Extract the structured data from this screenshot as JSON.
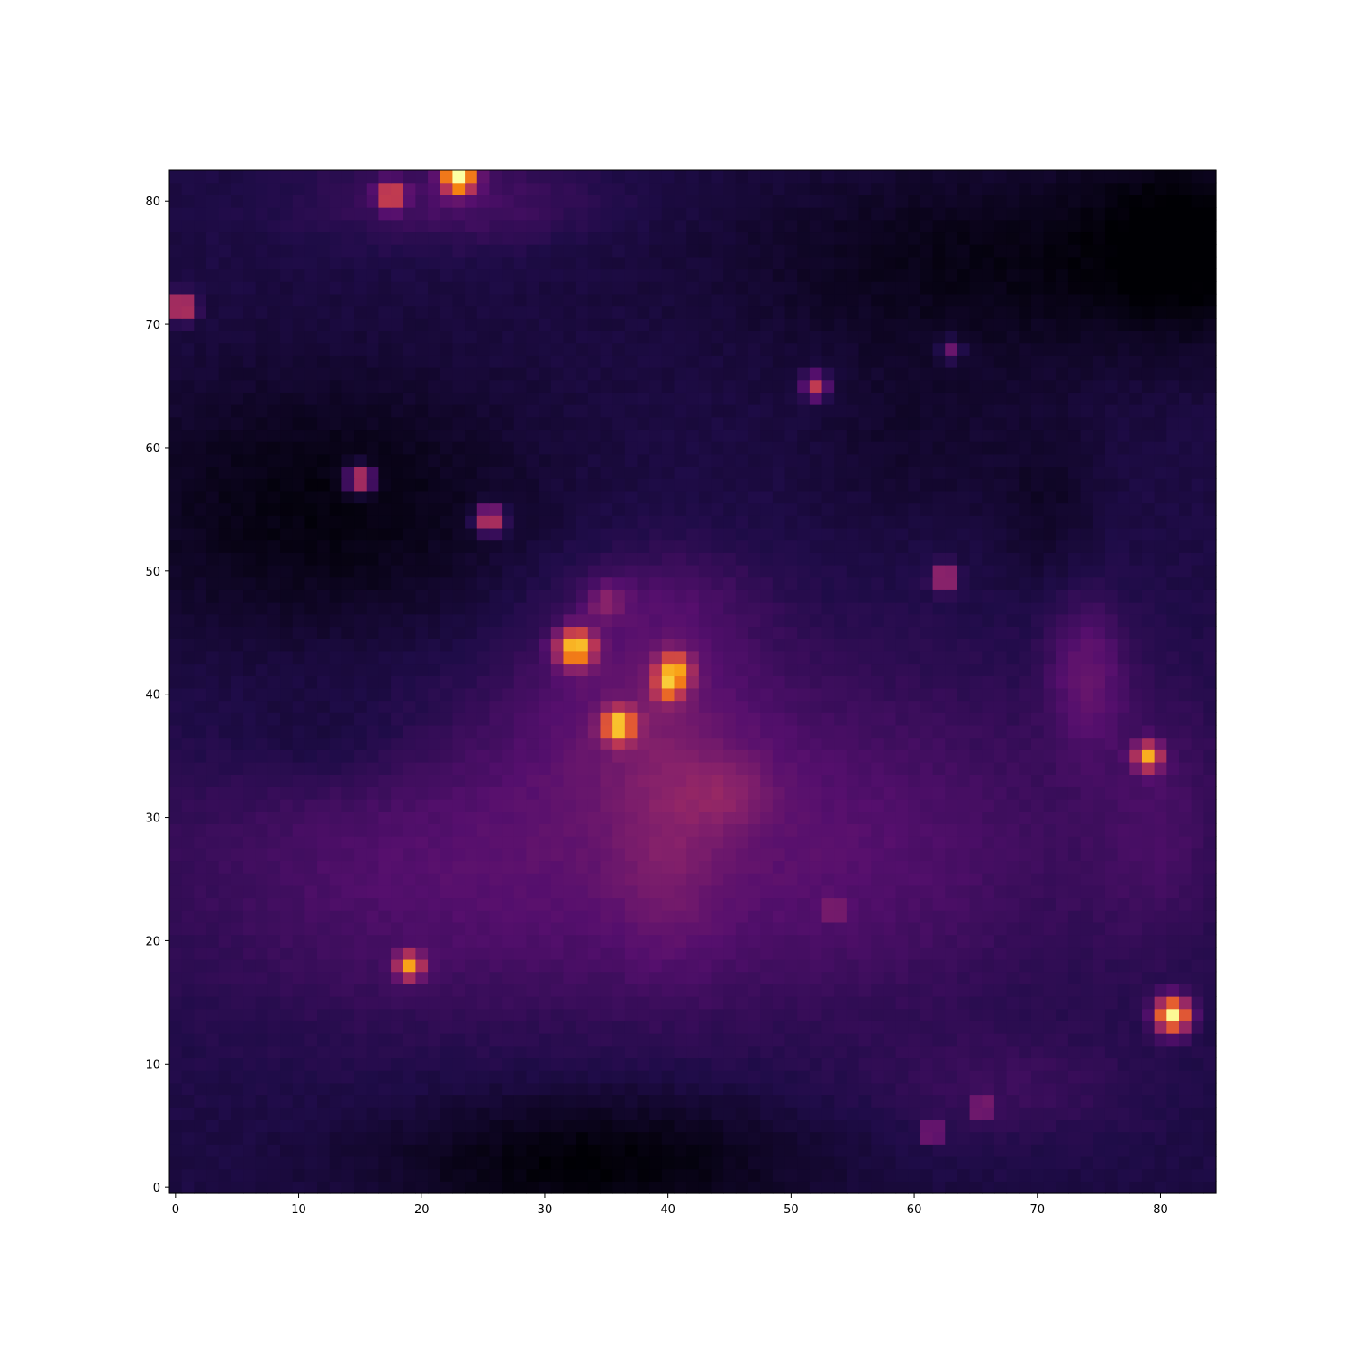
{
  "chart_data": {
    "type": "heatmap",
    "title": "",
    "xlabel": "",
    "ylabel": "",
    "colormap": "inferno",
    "origin": "lower",
    "grid": false,
    "legend": "none",
    "colorbar": false,
    "shape": [
      83,
      85
    ],
    "xlim": [
      -0.5,
      84.5
    ],
    "ylim": [
      -0.5,
      82.5
    ],
    "xticks": [
      0,
      10,
      20,
      30,
      40,
      50,
      60,
      70,
      80
    ],
    "xtick_labels": [
      "0",
      "10",
      "20",
      "30",
      "40",
      "50",
      "60",
      "70",
      "80"
    ],
    "yticks": [
      0,
      10,
      20,
      30,
      40,
      50,
      60,
      70,
      80
    ],
    "ytick_labels": [
      "0",
      "10",
      "20",
      "30",
      "40",
      "50",
      "60",
      "70",
      "80"
    ],
    "value_range": [
      0,
      1
    ],
    "background_level": 0.12,
    "regions": [
      {
        "x": 22,
        "y": 26,
        "sx": 18,
        "sy": 9,
        "amp": 0.12
      },
      {
        "x": 55,
        "y": 28,
        "sx": 16,
        "sy": 10,
        "amp": 0.11
      },
      {
        "x": 38,
        "y": 40,
        "sx": 7,
        "sy": 7,
        "amp": 0.12
      },
      {
        "x": 40,
        "y": 28,
        "sx": 3,
        "sy": 7,
        "amp": 0.08
      },
      {
        "x": 74,
        "y": 42,
        "sx": 2.2,
        "sy": 4.5,
        "amp": 0.14
      },
      {
        "x": 80,
        "y": 30,
        "sx": 4,
        "sy": 8,
        "amp": 0.07
      },
      {
        "x": 68,
        "y": 8,
        "sx": 8,
        "sy": 3,
        "amp": 0.06
      },
      {
        "x": 23,
        "y": 80,
        "sx": 8,
        "sy": 2.5,
        "amp": 0.1
      },
      {
        "x": 45,
        "y": 32,
        "sx": 2.5,
        "sy": 2,
        "amp": 0.1
      },
      {
        "x": 40,
        "y": 48,
        "sx": 5,
        "sy": 2.5,
        "amp": 0.05
      },
      {
        "x": 12,
        "y": 36,
        "sx": 6,
        "sy": 3,
        "amp": -0.05
      },
      {
        "x": 34,
        "y": 2,
        "sx": 12,
        "sy": 4,
        "amp": -0.12
      },
      {
        "x": 12,
        "y": 55,
        "sx": 12,
        "sy": 8,
        "amp": -0.1
      },
      {
        "x": 68,
        "y": 75,
        "sx": 16,
        "sy": 6,
        "amp": -0.09
      },
      {
        "x": 82,
        "y": 77,
        "sx": 5,
        "sy": 5,
        "amp": -0.1
      },
      {
        "x": 60,
        "y": 60,
        "sx": 6,
        "sy": 5,
        "amp": -0.04
      },
      {
        "x": 71,
        "y": 55,
        "sx": 3,
        "sy": 5,
        "amp": -0.05
      }
    ],
    "sources": [
      {
        "x": 23,
        "y": 82,
        "amp": 0.95,
        "s": 0.9
      },
      {
        "x": 17.5,
        "y": 80.5,
        "amp": 0.5,
        "s": 0.75
      },
      {
        "x": 0.5,
        "y": 71.5,
        "amp": 0.55,
        "s": 0.7
      },
      {
        "x": 52,
        "y": 65,
        "amp": 0.42,
        "s": 0.7
      },
      {
        "x": 63,
        "y": 68,
        "amp": 0.24,
        "s": 0.6
      },
      {
        "x": 15,
        "y": 57.5,
        "amp": 0.5,
        "s": 0.75
      },
      {
        "x": 25.5,
        "y": 54.2,
        "amp": 0.48,
        "s": 0.75
      },
      {
        "x": 62.5,
        "y": 49.5,
        "amp": 0.45,
        "s": 0.65
      },
      {
        "x": 32.5,
        "y": 43.8,
        "amp": 0.72,
        "s": 1.05
      },
      {
        "x": 40.5,
        "y": 42,
        "amp": 0.55,
        "s": 1.0
      },
      {
        "x": 40,
        "y": 40.5,
        "amp": 0.35,
        "s": 0.8
      },
      {
        "x": 36,
        "y": 37.5,
        "amp": 0.62,
        "s": 0.95
      },
      {
        "x": 35,
        "y": 47.5,
        "amp": 0.18,
        "s": 1.1
      },
      {
        "x": 79,
        "y": 35,
        "amp": 0.62,
        "s": 0.75
      },
      {
        "x": 19,
        "y": 18,
        "amp": 0.6,
        "s": 0.75
      },
      {
        "x": 53.5,
        "y": 22.5,
        "amp": 0.22,
        "s": 0.55
      },
      {
        "x": 81,
        "y": 14,
        "amp": 0.85,
        "s": 0.95
      },
      {
        "x": 65.5,
        "y": 6.5,
        "amp": 0.3,
        "s": 0.55
      },
      {
        "x": 61.5,
        "y": 4.5,
        "amp": 0.34,
        "s": 0.55
      }
    ]
  }
}
